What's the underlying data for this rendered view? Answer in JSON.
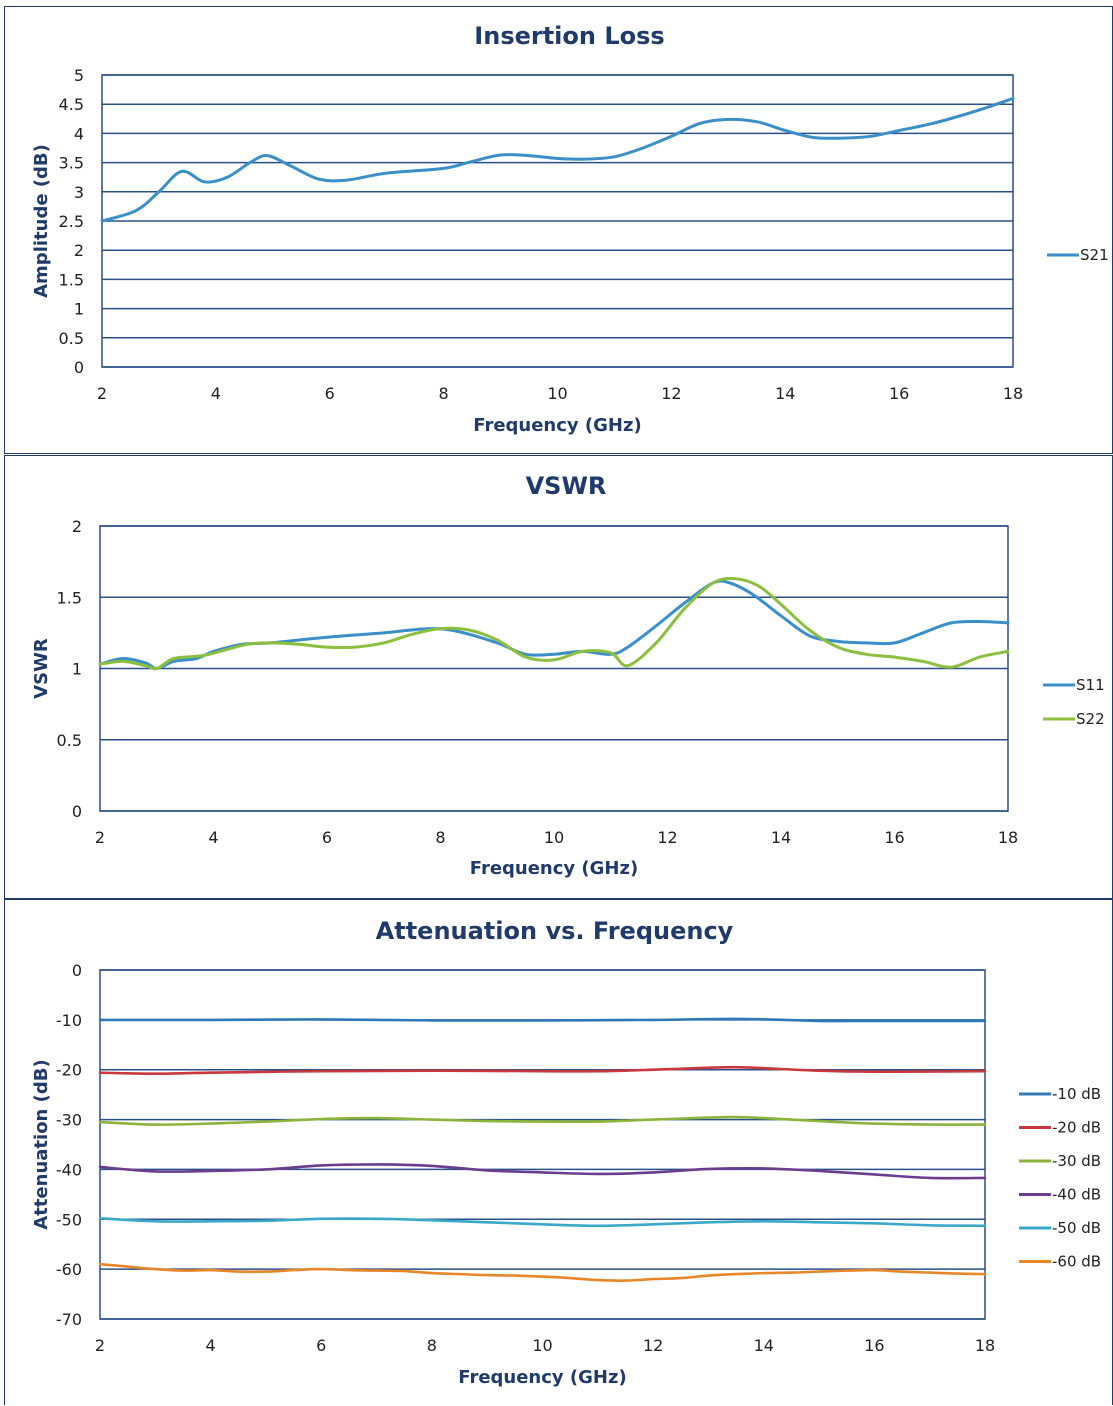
{
  "chart_data": [
    {
      "type": "line",
      "title": "Insertion Loss",
      "xlabel": "Frequency (GHz)",
      "ylabel": "Amplitude (dB)",
      "xlim": [
        2,
        18
      ],
      "ylim": [
        0,
        5
      ],
      "xticks": [
        2,
        4,
        6,
        8,
        10,
        12,
        14,
        16,
        18
      ],
      "yticks": [
        0,
        0.5,
        1,
        1.5,
        2,
        2.5,
        3,
        3.5,
        4,
        4.5,
        5
      ],
      "grid": true,
      "legend_position": "right",
      "series": [
        {
          "name": "S21",
          "color": "#3a8fc8",
          "x": [
            2.0,
            2.6,
            3.0,
            3.4,
            3.8,
            4.2,
            4.6,
            4.9,
            5.3,
            5.8,
            6.3,
            7.0,
            8.0,
            8.5,
            9.0,
            9.5,
            10.0,
            10.5,
            11.0,
            11.5,
            12.0,
            12.5,
            13.0,
            13.5,
            14.0,
            14.5,
            15.0,
            15.5,
            16.0,
            16.5,
            17.0,
            17.5,
            18.0
          ],
          "y": [
            2.5,
            2.68,
            3.0,
            3.35,
            3.17,
            3.25,
            3.5,
            3.62,
            3.45,
            3.22,
            3.2,
            3.32,
            3.4,
            3.52,
            3.63,
            3.62,
            3.57,
            3.56,
            3.6,
            3.75,
            3.95,
            4.17,
            4.24,
            4.2,
            4.05,
            3.93,
            3.92,
            3.95,
            4.05,
            4.15,
            4.28,
            4.43,
            4.6
          ]
        }
      ]
    },
    {
      "type": "line",
      "title": "VSWR",
      "xlabel": "Frequency (GHz)",
      "ylabel": "VSWR",
      "xlim": [
        2,
        18
      ],
      "ylim": [
        0,
        2
      ],
      "xticks": [
        2,
        4,
        6,
        8,
        10,
        12,
        14,
        16,
        18
      ],
      "yticks": [
        0,
        0.5,
        1,
        1.5,
        2
      ],
      "grid": true,
      "legend_position": "right",
      "series": [
        {
          "name": "S11",
          "color": "#3a8fc8",
          "x": [
            2.0,
            2.4,
            2.8,
            3.0,
            3.3,
            3.7,
            4.0,
            4.5,
            5.0,
            6.0,
            7.0,
            7.8,
            8.3,
            9.0,
            9.5,
            10.0,
            10.5,
            11.0,
            11.3,
            11.8,
            12.3,
            12.8,
            13.1,
            13.5,
            14.0,
            14.5,
            15.0,
            15.5,
            16.0,
            16.5,
            17.0,
            17.5,
            18.0
          ],
          "y": [
            1.03,
            1.07,
            1.04,
            1.0,
            1.05,
            1.07,
            1.12,
            1.17,
            1.18,
            1.22,
            1.25,
            1.28,
            1.26,
            1.18,
            1.1,
            1.1,
            1.12,
            1.1,
            1.15,
            1.3,
            1.46,
            1.6,
            1.6,
            1.52,
            1.37,
            1.23,
            1.19,
            1.18,
            1.18,
            1.25,
            1.32,
            1.33,
            1.32
          ]
        },
        {
          "name": "S22",
          "color": "#8cbf3f",
          "x": [
            2.0,
            2.4,
            2.8,
            3.0,
            3.3,
            3.8,
            4.2,
            4.6,
            5.0,
            5.5,
            6.0,
            6.5,
            7.0,
            7.5,
            8.0,
            8.5,
            9.0,
            9.5,
            10.0,
            10.5,
            11.0,
            11.3,
            11.8,
            12.3,
            12.8,
            13.2,
            13.6,
            14.0,
            14.5,
            15.0,
            15.5,
            16.0,
            16.5,
            17.0,
            17.5,
            18.0
          ],
          "y": [
            1.03,
            1.05,
            1.02,
            1.0,
            1.07,
            1.09,
            1.13,
            1.17,
            1.18,
            1.17,
            1.15,
            1.15,
            1.18,
            1.24,
            1.28,
            1.27,
            1.2,
            1.08,
            1.06,
            1.12,
            1.11,
            1.02,
            1.18,
            1.42,
            1.6,
            1.63,
            1.58,
            1.45,
            1.27,
            1.15,
            1.1,
            1.08,
            1.05,
            1.01,
            1.08,
            1.12
          ]
        }
      ]
    },
    {
      "type": "line",
      "title": "Attenuation vs. Frequency",
      "xlabel": "Frequency (GHz)",
      "ylabel": "Attenuation (dB)",
      "xlim": [
        2,
        18
      ],
      "ylim": [
        -70,
        0
      ],
      "xticks": [
        2,
        4,
        6,
        8,
        10,
        12,
        14,
        16,
        18
      ],
      "yticks": [
        0,
        -10,
        -20,
        -30,
        -40,
        -50,
        -60,
        -70
      ],
      "grid": true,
      "legend_position": "right",
      "series": [
        {
          "name": "-10 dB",
          "color": "#2e7ab8",
          "x": [
            2,
            4,
            6,
            8,
            10,
            12,
            13.5,
            15,
            16,
            18
          ],
          "y": [
            -10.0,
            -10.0,
            -9.9,
            -10.1,
            -10.1,
            -10.0,
            -9.8,
            -10.2,
            -10.2,
            -10.2
          ]
        },
        {
          "name": "-20 dB",
          "color": "#c8383d",
          "x": [
            2,
            3,
            4,
            6,
            8,
            10,
            11,
            12,
            13,
            13.5,
            14,
            15,
            16,
            18
          ],
          "y": [
            -20.6,
            -20.8,
            -20.6,
            -20.3,
            -20.2,
            -20.3,
            -20.3,
            -20.0,
            -19.6,
            -19.5,
            -19.7,
            -20.2,
            -20.4,
            -20.3
          ]
        },
        {
          "name": "-30 dB",
          "color": "#8cb43c",
          "x": [
            2,
            3,
            4,
            5,
            6,
            7,
            8,
            9,
            10,
            11,
            12,
            13,
            13.5,
            14,
            15,
            16,
            17,
            18
          ],
          "y": [
            -30.5,
            -31.0,
            -30.8,
            -30.4,
            -29.9,
            -29.7,
            -30.0,
            -30.3,
            -30.4,
            -30.4,
            -30.0,
            -29.6,
            -29.5,
            -29.7,
            -30.3,
            -30.8,
            -31.0,
            -31.0
          ]
        },
        {
          "name": "-40 dB",
          "color": "#6a3d8f",
          "x": [
            2,
            3,
            4,
            5,
            6,
            7,
            8,
            9,
            10,
            11,
            12,
            13,
            14,
            15,
            16,
            17,
            18
          ],
          "y": [
            -39.5,
            -40.4,
            -40.3,
            -40.0,
            -39.2,
            -39.0,
            -39.3,
            -40.2,
            -40.6,
            -40.9,
            -40.6,
            -39.9,
            -39.8,
            -40.3,
            -41.0,
            -41.7,
            -41.7
          ]
        },
        {
          "name": "-50 dB",
          "color": "#3aa8c8",
          "x": [
            2,
            3,
            4,
            5,
            6,
            7,
            8,
            9,
            10,
            11,
            12,
            13,
            14,
            15,
            16,
            17,
            18
          ],
          "y": [
            -49.8,
            -50.4,
            -50.4,
            -50.3,
            -49.9,
            -49.9,
            -50.2,
            -50.6,
            -51.0,
            -51.3,
            -51.0,
            -50.6,
            -50.4,
            -50.6,
            -50.8,
            -51.2,
            -51.3
          ]
        },
        {
          "name": "-60 dB",
          "color": "#e8862a",
          "x": [
            2,
            2.5,
            3,
            3.5,
            4,
            4.5,
            5,
            5.5,
            6,
            6.5,
            7,
            7.5,
            8,
            8.5,
            9,
            9.5,
            10,
            10.5,
            11,
            11.5,
            12,
            12.5,
            13,
            13.5,
            14,
            14.5,
            15,
            15.5,
            16,
            16.5,
            17,
            17.5,
            18
          ],
          "y": [
            -59.0,
            -59.5,
            -60.0,
            -60.3,
            -60.2,
            -60.5,
            -60.5,
            -60.2,
            -60.0,
            -60.2,
            -60.3,
            -60.4,
            -60.8,
            -61.0,
            -61.2,
            -61.3,
            -61.5,
            -61.8,
            -62.2,
            -62.3,
            -62.0,
            -61.8,
            -61.3,
            -61.0,
            -60.8,
            -60.7,
            -60.5,
            -60.3,
            -60.2,
            -60.5,
            -60.7,
            -60.9,
            -61.0
          ]
        }
      ]
    }
  ]
}
